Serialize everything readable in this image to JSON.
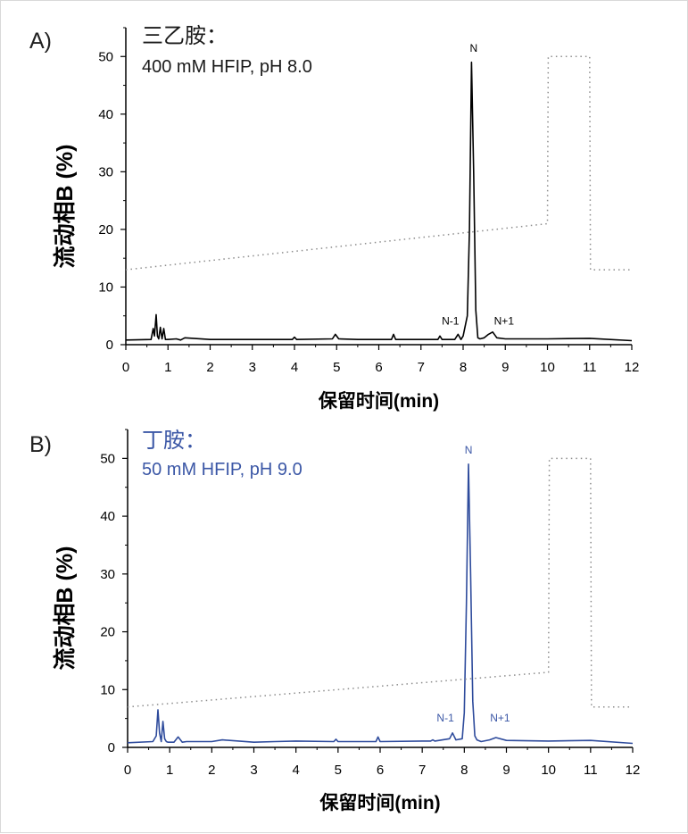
{
  "chart_data": [
    {
      "type": "line",
      "panel_letter": "A)",
      "annotation_line1": "三乙胺：",
      "annotation_line2": "400 mM HFIP, pH 8.0",
      "annotation_color": "#1a1a1a",
      "trace_color": "#000000",
      "gradient_color": "#8c8c8c",
      "xlabel": "保留时间(min)",
      "ylabel": "流动相B (%)",
      "xlim": [
        0,
        12
      ],
      "ylim": [
        0,
        55
      ],
      "xticks": [
        "0",
        "1",
        "2",
        "3",
        "4",
        "5",
        "6",
        "7",
        "8",
        "9",
        "10",
        "11",
        "12"
      ],
      "yticks": [
        "0",
        "10",
        "20",
        "30",
        "40",
        "50"
      ],
      "grid": false,
      "series": [
        {
          "name": "",
          "style": "solid",
          "x": [
            0,
            0.6,
            0.65,
            0.68,
            0.72,
            0.75,
            0.78,
            0.82,
            0.86,
            0.9,
            0.94,
            1.0,
            1.2,
            1.3,
            1.4,
            2.0,
            3.0,
            3.95,
            4.0,
            4.05,
            4.9,
            4.97,
            5.05,
            5.5,
            6.3,
            6.35,
            6.4,
            7.0,
            7.4,
            7.45,
            7.5,
            7.8,
            7.88,
            7.95,
            8.0,
            8.1,
            8.15,
            8.2,
            8.25,
            8.3,
            8.35,
            8.4,
            8.5,
            8.6,
            8.7,
            8.8,
            9.0,
            10.0,
            11.0,
            12.0
          ],
          "y": [
            0.8,
            0.9,
            2.8,
            1.5,
            5.2,
            1.5,
            1.0,
            3.0,
            1.0,
            2.8,
            0.9,
            0.9,
            1.0,
            0.8,
            1.2,
            0.9,
            0.9,
            0.9,
            1.3,
            0.9,
            1.0,
            1.8,
            1.0,
            0.9,
            0.9,
            1.8,
            0.9,
            0.9,
            0.9,
            1.5,
            0.9,
            0.9,
            1.8,
            0.9,
            1.5,
            5.0,
            20.0,
            49.0,
            30.0,
            6.0,
            1.2,
            1.0,
            1.2,
            1.8,
            2.2,
            1.2,
            1.0,
            1.0,
            1.1,
            0.7
          ]
        },
        {
          "name": "",
          "style": "dotted",
          "x": [
            0,
            10.0,
            10.02,
            11.0,
            11.02,
            12.0
          ],
          "y": [
            13,
            21,
            50,
            50,
            13,
            13
          ]
        }
      ],
      "annotations": [
        {
          "text": "N",
          "x": 8.25,
          "y": 50.8
        },
        {
          "text": "N-1",
          "x": 7.7,
          "y": 3.5
        },
        {
          "text": "N+1",
          "x": 8.97,
          "y": 3.5
        }
      ]
    },
    {
      "type": "line",
      "panel_letter": "B)",
      "annotation_line1": "丁胺：",
      "annotation_line2": "50 mM HFIP, pH 9.0",
      "annotation_color": "#3b57a6",
      "trace_color": "#2e4b9c",
      "gradient_color": "#8c8c8c",
      "xlabel": "保留时间(min)",
      "ylabel": "流动相B (%)",
      "xlim": [
        0,
        12
      ],
      "ylim": [
        0,
        55
      ],
      "xticks": [
        "0",
        "1",
        "2",
        "3",
        "4",
        "5",
        "6",
        "7",
        "8",
        "9",
        "10",
        "11",
        "12"
      ],
      "yticks": [
        "0",
        "10",
        "20",
        "30",
        "40",
        "50"
      ],
      "grid": false,
      "series": [
        {
          "name": "",
          "style": "solid",
          "x": [
            0,
            0.6,
            0.68,
            0.72,
            0.76,
            0.8,
            0.84,
            0.88,
            0.92,
            0.96,
            1.1,
            1.2,
            1.3,
            1.4,
            2.0,
            2.25,
            3.0,
            3.5,
            4.0,
            4.9,
            4.95,
            5.0,
            5.9,
            5.95,
            6.0,
            7.0,
            7.2,
            7.25,
            7.3,
            7.65,
            7.72,
            7.8,
            7.95,
            8.0,
            8.05,
            8.1,
            8.15,
            8.2,
            8.25,
            8.3,
            8.4,
            8.6,
            8.75,
            9.0,
            10.0,
            11.0,
            12.0
          ],
          "y": [
            0.8,
            1.0,
            2.0,
            6.5,
            2.5,
            1.0,
            4.5,
            1.5,
            1.0,
            0.9,
            0.9,
            1.8,
            0.9,
            1.0,
            1.0,
            1.3,
            0.9,
            1.0,
            1.1,
            1.0,
            1.4,
            1.0,
            1.0,
            1.8,
            1.0,
            1.1,
            1.1,
            1.3,
            1.1,
            1.5,
            2.5,
            1.3,
            1.5,
            6.0,
            25.0,
            49.0,
            30.0,
            8.0,
            2.0,
            1.3,
            1.0,
            1.3,
            1.7,
            1.2,
            1.1,
            1.2,
            0.7
          ]
        },
        {
          "name": "",
          "style": "dotted",
          "x": [
            0,
            10.0,
            10.02,
            11.0,
            11.02,
            12.0
          ],
          "y": [
            7,
            13,
            50,
            50,
            7,
            7
          ]
        }
      ],
      "annotations": [
        {
          "text": "N",
          "x": 8.1,
          "y": 50.8
        },
        {
          "text": "N-1",
          "x": 7.55,
          "y": 4.5
        },
        {
          "text": "N+1",
          "x": 8.85,
          "y": 4.5
        }
      ]
    }
  ]
}
